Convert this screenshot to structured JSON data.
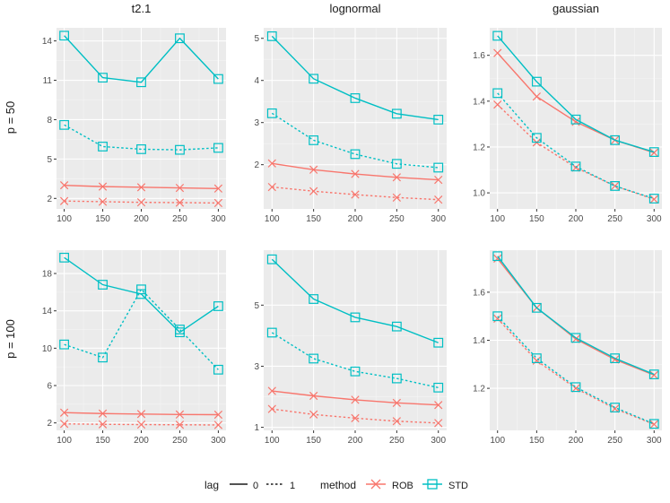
{
  "colors": {
    "ROB": "#F8766D",
    "STD": "#00BFC4",
    "panel_bg": "#EBEBEB",
    "grid_major": "#FFFFFF",
    "text_dark": "#1A1A1A",
    "axis_text": "#4D4D4D"
  },
  "strips": {
    "columns": [
      "t2.1",
      "lognormal",
      "gaussian"
    ],
    "rows": [
      "p = 50",
      "p = 100"
    ]
  },
  "legend": {
    "lag_title": "lag",
    "lag_items": [
      "0",
      "1"
    ],
    "method_title": "method",
    "method_items": [
      "ROB",
      "STD"
    ]
  },
  "chart_data": {
    "type": "line",
    "facets": "row ~ column, free y scales",
    "x": [
      100,
      150,
      200,
      250,
      300
    ],
    "x_ticks": [
      "100",
      "150",
      "200",
      "250",
      "300"
    ],
    "panels": [
      {
        "column": "t2.1",
        "row": "p = 50",
        "ylim": [
          1.2,
          15.0
        ],
        "y_ticks": [
          2,
          5,
          8,
          11,
          14
        ],
        "y_labels": [
          "2",
          "5",
          "8",
          "11",
          "14"
        ],
        "series": [
          {
            "method": "ROB",
            "lag": "0",
            "values": [
              3.0,
              2.9,
              2.85,
              2.8,
              2.75
            ]
          },
          {
            "method": "ROB",
            "lag": "1",
            "values": [
              1.8,
              1.75,
              1.7,
              1.68,
              1.65
            ]
          },
          {
            "method": "STD",
            "lag": "0",
            "values": [
              14.4,
              11.2,
              10.85,
              14.2,
              11.1
            ]
          },
          {
            "method": "STD",
            "lag": "1",
            "values": [
              7.6,
              5.95,
              5.75,
              5.7,
              5.85
            ]
          }
        ]
      },
      {
        "column": "lognormal",
        "row": "p = 50",
        "ylim": [
          0.95,
          5.25
        ],
        "y_ticks": [
          2,
          3,
          4,
          5
        ],
        "y_labels": [
          "2",
          "3",
          "4",
          "5"
        ],
        "series": [
          {
            "method": "ROB",
            "lag": "0",
            "values": [
              2.03,
              1.88,
              1.78,
              1.7,
              1.64
            ]
          },
          {
            "method": "ROB",
            "lag": "1",
            "values": [
              1.47,
              1.37,
              1.29,
              1.22,
              1.17
            ]
          },
          {
            "method": "STD",
            "lag": "0",
            "values": [
              5.05,
              4.04,
              3.58,
              3.21,
              3.07
            ]
          },
          {
            "method": "STD",
            "lag": "1",
            "values": [
              3.22,
              2.58,
              2.25,
              2.02,
              1.93
            ]
          }
        ]
      },
      {
        "column": "gaussian",
        "row": "p = 50",
        "ylim": [
          0.93,
          1.72
        ],
        "y_ticks": [
          1.0,
          1.2,
          1.4,
          1.6
        ],
        "y_labels": [
          "1.0",
          "1.2",
          "1.4",
          "1.6"
        ],
        "series": [
          {
            "method": "ROB",
            "lag": "0",
            "values": [
              1.61,
              1.42,
              1.31,
              1.23,
              1.175
            ]
          },
          {
            "method": "ROB",
            "lag": "1",
            "values": [
              1.385,
              1.22,
              1.11,
              1.03,
              0.972
            ]
          },
          {
            "method": "STD",
            "lag": "0",
            "values": [
              1.685,
              1.485,
              1.32,
              1.23,
              1.178
            ]
          },
          {
            "method": "STD",
            "lag": "1",
            "values": [
              1.435,
              1.24,
              1.115,
              1.03,
              0.975
            ]
          }
        ]
      },
      {
        "column": "t2.1",
        "row": "p = 100",
        "ylim": [
          1.2,
          20.5
        ],
        "y_ticks": [
          2,
          6,
          10,
          14,
          18
        ],
        "y_labels": [
          "2",
          "6",
          "10",
          "14",
          "18"
        ],
        "series": [
          {
            "method": "ROB",
            "lag": "0",
            "values": [
              3.1,
              3.0,
              2.95,
              2.9,
              2.88
            ]
          },
          {
            "method": "ROB",
            "lag": "1",
            "values": [
              1.9,
              1.85,
              1.82,
              1.8,
              1.78
            ]
          },
          {
            "method": "STD",
            "lag": "0",
            "values": [
              19.7,
              16.8,
              15.8,
              11.7,
              14.5
            ]
          },
          {
            "method": "STD",
            "lag": "1",
            "values": [
              10.4,
              9.0,
              16.3,
              12.0,
              7.7
            ]
          }
        ]
      },
      {
        "column": "lognormal",
        "row": "p = 100",
        "ylim": [
          0.9,
          6.8
        ],
        "y_ticks": [
          1,
          3,
          5
        ],
        "y_labels": [
          "1",
          "3",
          "5"
        ],
        "series": [
          {
            "method": "ROB",
            "lag": "0",
            "values": [
              2.19,
              2.03,
              1.9,
              1.8,
              1.73
            ]
          },
          {
            "method": "ROB",
            "lag": "1",
            "values": [
              1.6,
              1.42,
              1.3,
              1.2,
              1.14
            ]
          },
          {
            "method": "STD",
            "lag": "0",
            "values": [
              6.5,
              5.2,
              4.6,
              4.3,
              3.77
            ]
          },
          {
            "method": "STD",
            "lag": "1",
            "values": [
              4.1,
              3.25,
              2.83,
              2.6,
              2.3
            ]
          }
        ]
      },
      {
        "column": "gaussian",
        "row": "p = 100",
        "ylim": [
          1.025,
          1.775
        ],
        "y_ticks": [
          1.2,
          1.4,
          1.6
        ],
        "y_labels": [
          "1.2",
          "1.4",
          "1.6"
        ],
        "series": [
          {
            "method": "ROB",
            "lag": "0",
            "values": [
              1.74,
              1.535,
              1.405,
              1.32,
              1.255
            ]
          },
          {
            "method": "ROB",
            "lag": "1",
            "values": [
              1.49,
              1.315,
              1.2,
              1.115,
              1.05
            ]
          },
          {
            "method": "STD",
            "lag": "0",
            "values": [
              1.75,
              1.535,
              1.41,
              1.325,
              1.258
            ]
          },
          {
            "method": "STD",
            "lag": "1",
            "values": [
              1.5,
              1.325,
              1.205,
              1.12,
              1.052
            ]
          }
        ]
      }
    ]
  }
}
